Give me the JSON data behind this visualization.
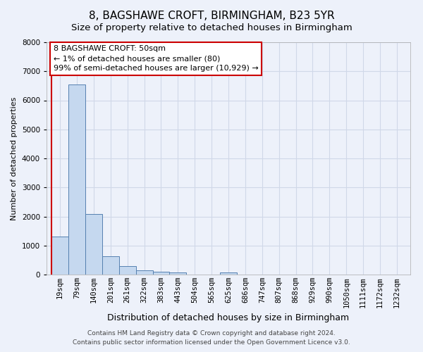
{
  "title1": "8, BAGSHAWE CROFT, BIRMINGHAM, B23 5YR",
  "title2": "Size of property relative to detached houses in Birmingham",
  "xlabel": "Distribution of detached houses by size in Birmingham",
  "ylabel": "Number of detached properties",
  "footnote1": "Contains HM Land Registry data © Crown copyright and database right 2024.",
  "footnote2": "Contains public sector information licensed under the Open Government Licence v3.0.",
  "categories": [
    "19sqm",
    "79sqm",
    "140sqm",
    "201sqm",
    "261sqm",
    "322sqm",
    "383sqm",
    "443sqm",
    "504sqm",
    "565sqm",
    "625sqm",
    "686sqm",
    "747sqm",
    "807sqm",
    "868sqm",
    "929sqm",
    "990sqm",
    "1050sqm",
    "1111sqm",
    "1172sqm",
    "1232sqm"
  ],
  "values": [
    1300,
    6550,
    2080,
    640,
    280,
    150,
    100,
    80,
    0,
    0,
    80,
    0,
    0,
    0,
    0,
    0,
    0,
    0,
    0,
    0,
    0
  ],
  "bar_color": "#c5d8ef",
  "bar_edge_color": "#5580b0",
  "annotation_line1": "8 BAGSHAWE CROFT: 50sqm",
  "annotation_line2": "← 1% of detached houses are smaller (80)",
  "annotation_line3": "99% of semi-detached houses are larger (10,929) →",
  "annotation_box_facecolor": "#ffffff",
  "annotation_box_edgecolor": "#cc0000",
  "red_line_color": "#cc0000",
  "background_color": "#edf1fa",
  "ylim": [
    0,
    8000
  ],
  "yticks": [
    0,
    1000,
    2000,
    3000,
    4000,
    5000,
    6000,
    7000,
    8000
  ],
  "grid_color": "#d0d8e8",
  "title1_fontsize": 11,
  "title2_fontsize": 9.5,
  "xlabel_fontsize": 9,
  "ylabel_fontsize": 8,
  "tick_fontsize": 7.5,
  "annot_fontsize": 8,
  "footnote_fontsize": 6.5
}
